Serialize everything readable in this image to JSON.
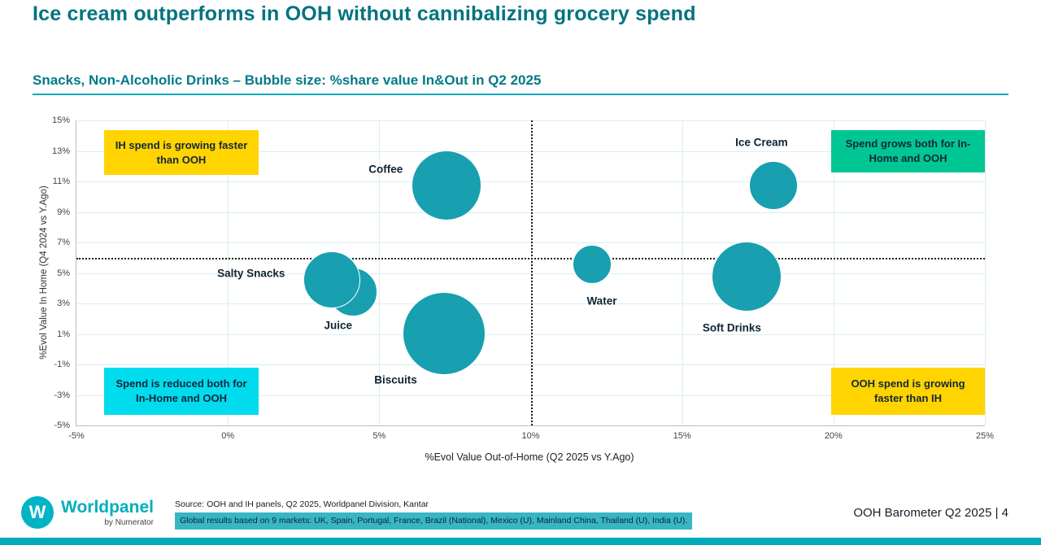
{
  "slide": {
    "title": "Ice cream outperforms in OOH without cannibalizing grocery spend",
    "subtitle": "Snacks, Non-Alcoholic Drinks – Bubble size: %share value In&Out in Q2 2025",
    "page_label": "OOH Barometer Q2 2025 | 4",
    "source_line1": "Source: OOH and IH panels, Q2 2025, Worldpanel Division, Kantar",
    "source_line2": "Global results based on 9 markets: UK, Spain, Portugal, France, Brazil (National), Mexico (U), Mainland China, Thailand (U), India (U).",
    "logo": {
      "monogram": "W",
      "brand": "Worldpanel",
      "sub": "by Numerator"
    }
  },
  "annotations": {
    "top_left": {
      "text": "IH spend is growing faster than OOH",
      "color": "#ffd400"
    },
    "top_right": {
      "text": "Spend grows both for In-Home and OOH",
      "color": "#00c693"
    },
    "bottom_left": {
      "text": "Spend is reduced both for In-Home and OOH",
      "color": "#00dced"
    },
    "bottom_right": {
      "text": "OOH spend is growing faster than IH",
      "color": "#ffd400"
    }
  },
  "colors": {
    "title_teal": "#00737f",
    "bubble_teal": "#189fb0",
    "gridline": "#d9eef2",
    "footer_bar": "#00abb9"
  },
  "chart_data": {
    "type": "scatter",
    "title": "Snacks, Non-Alcoholic Drinks – Bubble size: %share value In&Out in Q2 2025",
    "xlabel": "%Evol Value Out-of-Home (Q2 2025 vs Y.Ago)",
    "ylabel": "%Evol Value In Home (Q4 2024 vs Y.Ago)",
    "xlim": [
      -5,
      25
    ],
    "ylim": [
      -5,
      15
    ],
    "grid": true,
    "legend": false,
    "x_tick_values": [
      -5,
      0,
      5,
      10,
      15,
      20,
      25
    ],
    "x_tick_labels": [
      "-5%",
      "0%",
      "5%",
      "10%",
      "15%",
      "20%",
      "25%"
    ],
    "y_tick_values": [
      15,
      13,
      11,
      9,
      7,
      5,
      3,
      1,
      -1,
      -3,
      -5
    ],
    "y_tick_labels": [
      "15%",
      "13%",
      "11%",
      "9%",
      "7%",
      "5%",
      "3%",
      "1%",
      "-1%",
      "-3%",
      "-5%"
    ],
    "reference_lines": {
      "vertical_x": 10,
      "horizontal_y": 6
    },
    "points": [
      {
        "label": "Coffee",
        "x": 7.2,
        "y": 10.8,
        "r": 42,
        "label_offset": [
          -74,
          -19
        ]
      },
      {
        "label": "Ice Cream",
        "x": 18.0,
        "y": 10.8,
        "r": 29,
        "label_offset": [
          -14,
          -52
        ]
      },
      {
        "label": "Juice",
        "x": 4.1,
        "y": 3.8,
        "r": 29,
        "label_offset": [
          -17,
          42
        ]
      },
      {
        "label": "Salty Snacks",
        "x": 3.4,
        "y": 4.6,
        "r": 34,
        "label_offset": [
          -98,
          -7
        ]
      },
      {
        "label": "Biscuits",
        "x": 7.1,
        "y": 1.1,
        "r": 50,
        "label_offset": [
          -58,
          58
        ]
      },
      {
        "label": "Water",
        "x": 12.0,
        "y": 5.6,
        "r": 23,
        "label_offset": [
          13,
          46
        ]
      },
      {
        "label": "Soft Drinks",
        "x": 17.1,
        "y": 4.8,
        "r": 42,
        "label_offset": [
          -17,
          64
        ]
      }
    ]
  }
}
